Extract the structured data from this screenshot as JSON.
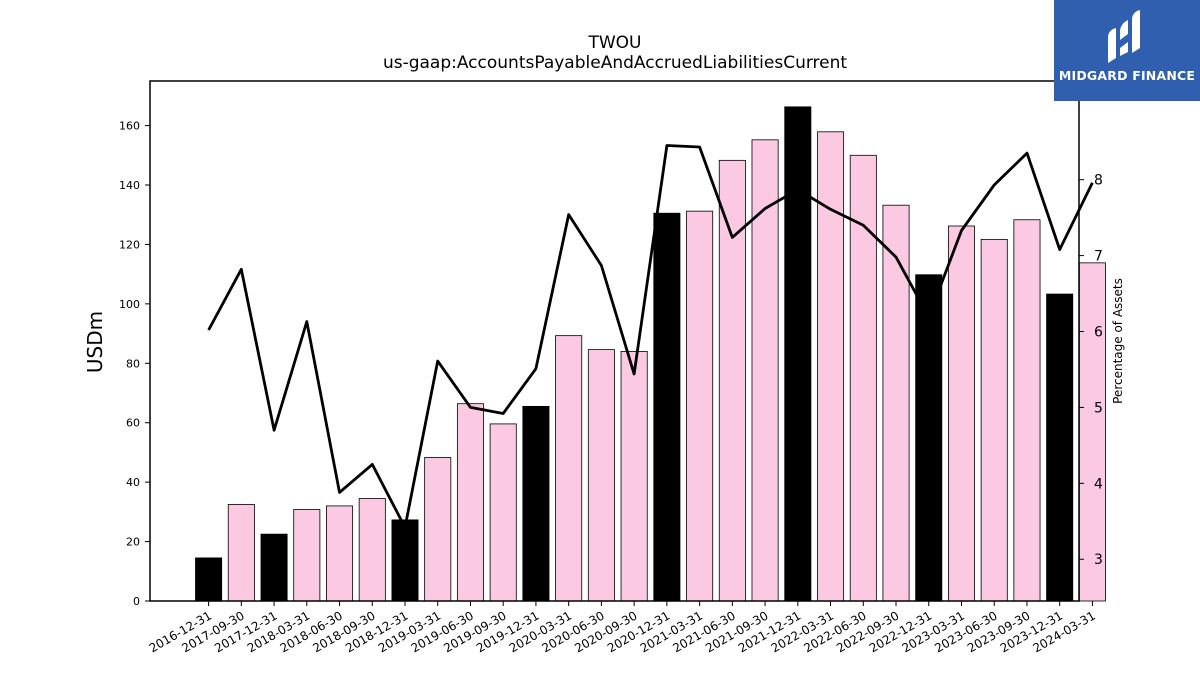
{
  "chart_data": {
    "type": "bar",
    "title": "TWOU",
    "subtitle": "us-gaap:AccountsPayableAndAccruedLiabilitiesCurrent",
    "ylabel": "USDm",
    "y2label": "Percentage of Assets",
    "ylim": [
      0,
      175
    ],
    "y2lim": [
      2.45,
      9.3
    ],
    "yticks": [
      0,
      20,
      40,
      60,
      80,
      100,
      120,
      140,
      160
    ],
    "y2ticks": [
      3,
      4,
      5,
      6,
      7,
      8
    ],
    "grid": false,
    "categories": [
      "2016-12-31",
      "2017-09-30",
      "2017-12-31",
      "2018-03-31",
      "2018-06-30",
      "2018-09-30",
      "2018-12-31",
      "2019-03-31",
      "2019-06-30",
      "2019-09-30",
      "2019-12-31",
      "2020-03-31",
      "2020-06-30",
      "2020-09-30",
      "2020-12-31",
      "2021-03-31",
      "2021-06-30",
      "2021-09-30",
      "2021-12-31",
      "2022-03-31",
      "2022-06-30",
      "2022-09-30",
      "2022-12-31",
      "2023-03-31",
      "2023-06-30",
      "2023-09-30",
      "2023-12-31",
      "2024-03-31"
    ],
    "series": [
      {
        "type": "bar",
        "axis": "left",
        "values": [
          14.5,
          32.5,
          22.5,
          30.8,
          32.0,
          34.5,
          27.3,
          48.3,
          66.4,
          59.6,
          65.5,
          89.3,
          84.6,
          84.0,
          130.5,
          131.2,
          148.3,
          155.2,
          166.3,
          157.9,
          150.0,
          133.2,
          109.8,
          126.2,
          121.7,
          128.3,
          103.3,
          113.8
        ],
        "colors": [
          "#000000",
          "#fbc9e2",
          "#000000",
          "#fbc9e2",
          "#fbc9e2",
          "#fbc9e2",
          "#000000",
          "#fbc9e2",
          "#fbc9e2",
          "#fbc9e2",
          "#000000",
          "#fbc9e2",
          "#fbc9e2",
          "#fbc9e2",
          "#000000",
          "#fbc9e2",
          "#fbc9e2",
          "#fbc9e2",
          "#000000",
          "#fbc9e2",
          "#fbc9e2",
          "#fbc9e2",
          "#000000",
          "#fbc9e2",
          "#fbc9e2",
          "#fbc9e2",
          "#000000",
          "#fbc9e2"
        ]
      },
      {
        "type": "line",
        "axis": "right",
        "color": "#000000",
        "values": [
          6.02,
          6.82,
          4.7,
          6.13,
          3.88,
          4.25,
          3.42,
          5.61,
          5.0,
          4.92,
          5.51,
          7.54,
          6.87,
          5.44,
          8.45,
          8.43,
          7.24,
          7.62,
          7.87,
          7.61,
          7.4,
          6.98,
          6.19,
          7.33,
          7.93,
          8.35,
          7.08,
          7.96
        ]
      }
    ]
  },
  "logo": {
    "text": "MIDGARD FINANCE",
    "bg": "#2f5fae"
  }
}
